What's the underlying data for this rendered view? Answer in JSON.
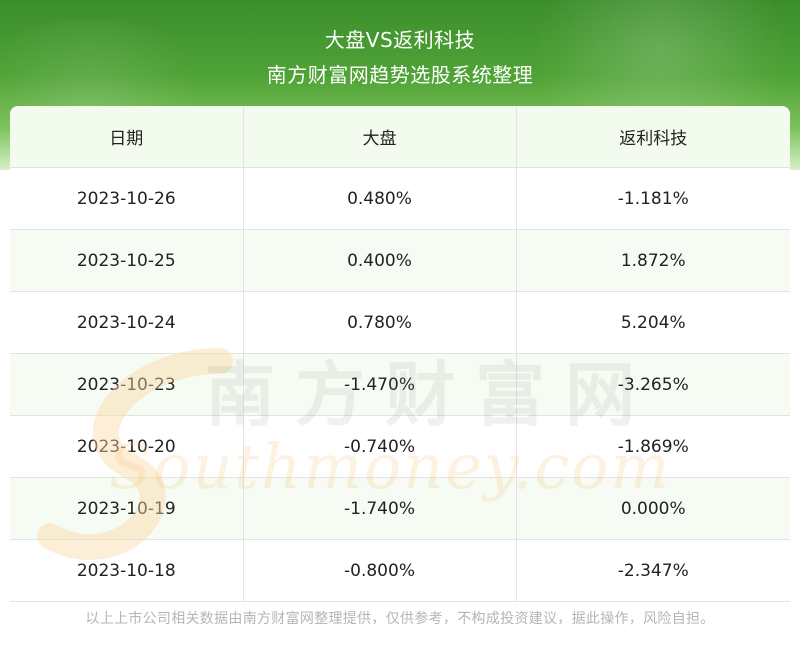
{
  "header": {
    "title": "大盘VS返利科技",
    "subtitle": "南方财富网趋势选股系统整理"
  },
  "chart_data": {
    "type": "table",
    "columns": [
      "日期",
      "大盘",
      "返利科技"
    ],
    "rows": [
      [
        "2023-10-26",
        "0.480%",
        "-1.181%"
      ],
      [
        "2023-10-25",
        "0.400%",
        "1.872%"
      ],
      [
        "2023-10-24",
        "0.780%",
        "5.204%"
      ],
      [
        "2023-10-23",
        "-1.470%",
        "-3.265%"
      ],
      [
        "2023-10-20",
        "-0.740%",
        "-1.869%"
      ],
      [
        "2023-10-19",
        "-1.740%",
        "0.000%"
      ],
      [
        "2023-10-18",
        "-0.800%",
        "-2.347%"
      ]
    ]
  },
  "watermark": {
    "cn": "南方财富网",
    "en": "Southmoney.com"
  },
  "footer": {
    "disclaimer": "以上上市公司相关数据由南方财富网整理提供，仅供参考，不构成投资建议，据此操作，风险自担。"
  },
  "colors": {
    "banner_green": "#4fa336",
    "header_row_bg": "#f2fbee",
    "watermark_orange": "#f7c27a"
  }
}
